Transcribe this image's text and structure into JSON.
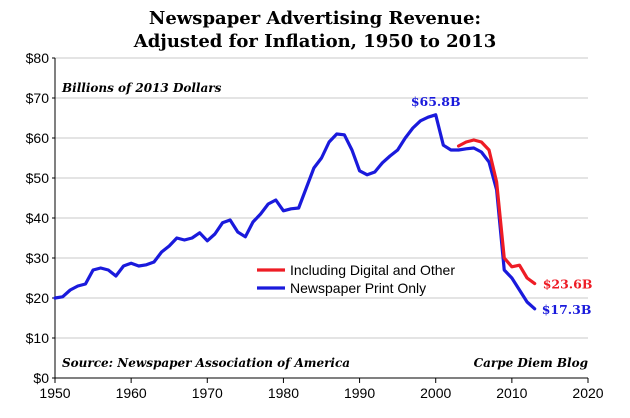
{
  "chart_data": {
    "type": "line",
    "title": [
      "Newspaper Advertising Revenue:",
      "Adjusted for Inflation, 1950 to 2013"
    ],
    "ylabel": "Billions of 2013 Dollars",
    "xlabel": "",
    "xlim": [
      1950,
      2020
    ],
    "ylim": [
      0,
      80
    ],
    "xticks": [
      1950,
      1960,
      1970,
      1980,
      1990,
      2000,
      2010,
      2020
    ],
    "xtick_labels": [
      "1950",
      "1960",
      "1970",
      "1980",
      "1990",
      "2000",
      "2010",
      "2020"
    ],
    "yticks": [
      0,
      10,
      20,
      30,
      40,
      50,
      60,
      70,
      80
    ],
    "ytick_labels": [
      "$0",
      "$10",
      "$20",
      "$30",
      "$40",
      "$50",
      "$60",
      "$70",
      "$80"
    ],
    "grid": true,
    "legend_position": "center-right",
    "source": "Source: Newspaper Association of America",
    "credit": "Carpe Diem Blog",
    "series": [
      {
        "name": "Including Digital and Other",
        "color": "#ee1c25",
        "x": [
          2003,
          2004,
          2005,
          2006,
          2007,
          2008,
          2009,
          2010,
          2011,
          2012,
          2013
        ],
        "y": [
          58.0,
          59.0,
          59.5,
          59.0,
          57.0,
          49.0,
          30.0,
          27.8,
          28.2,
          25.0,
          23.6
        ]
      },
      {
        "name": "Newspaper Print Only",
        "color": "#1a1adc",
        "x": [
          1950,
          1951,
          1952,
          1953,
          1954,
          1955,
          1956,
          1957,
          1958,
          1959,
          1960,
          1961,
          1962,
          1963,
          1964,
          1965,
          1966,
          1967,
          1968,
          1969,
          1970,
          1971,
          1972,
          1973,
          1974,
          1975,
          1976,
          1977,
          1978,
          1979,
          1980,
          1981,
          1982,
          1983,
          1984,
          1985,
          1986,
          1987,
          1988,
          1989,
          1990,
          1991,
          1992,
          1993,
          1994,
          1995,
          1996,
          1997,
          1998,
          1999,
          2000,
          2001,
          2002,
          2003,
          2004,
          2005,
          2006,
          2007,
          2008,
          2009,
          2010,
          2011,
          2012,
          2013
        ],
        "y": [
          20.0,
          20.3,
          22.0,
          23.0,
          23.5,
          27.0,
          27.5,
          27.0,
          25.5,
          28.0,
          28.7,
          28.0,
          28.3,
          29.0,
          31.5,
          33.0,
          35.0,
          34.5,
          35.0,
          36.3,
          34.3,
          36.0,
          38.8,
          39.5,
          36.5,
          35.3,
          39.0,
          41.0,
          43.5,
          44.5,
          41.8,
          42.3,
          42.5,
          47.5,
          52.5,
          55.0,
          59.0,
          61.0,
          60.8,
          57.0,
          51.8,
          50.8,
          51.5,
          53.8,
          55.5,
          57.0,
          60.0,
          62.5,
          64.3,
          65.2,
          65.8,
          58.2,
          57.0,
          57.0,
          57.3,
          57.5,
          56.5,
          54.0,
          47.0,
          27.0,
          25.0,
          22.0,
          19.0,
          17.3
        ]
      }
    ],
    "annotations": [
      {
        "text": "$65.8B",
        "x": 2000,
        "y": 65.8,
        "color": "#1a1adc"
      },
      {
        "text": "$23.6B",
        "x": 2013,
        "y": 23.6,
        "color": "#ee1c25"
      },
      {
        "text": "$17.3B",
        "x": 2013,
        "y": 17.3,
        "color": "#1a1adc"
      }
    ]
  }
}
